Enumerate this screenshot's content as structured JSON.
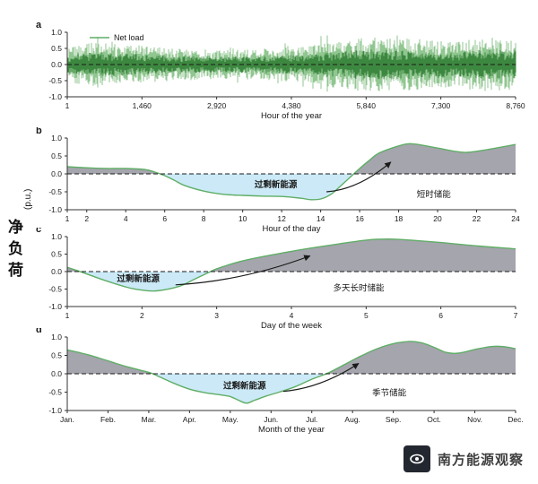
{
  "figure": {
    "ylabel_cn": "净负荷",
    "ylabel_unit": "(p.u.)"
  },
  "watermark": {
    "text": "南方能源观察"
  },
  "colors": {
    "curve": "#5fae66",
    "noise_light": "#74b874",
    "noise_dark": "#2f7d33",
    "fill_positive": "#a5a5ad",
    "fill_negative": "#cbe9f6",
    "zero_line": "#1a1a1a",
    "axis": "#333333",
    "red_label": "#d93025",
    "text": "#1a1a1a"
  },
  "chart_data": [
    {
      "id": "a",
      "panel_label": "a",
      "type": "line",
      "legend": "Net load",
      "xlabel": "Hour of the year",
      "xlim": [
        1,
        8760
      ],
      "xticks": [
        1,
        1460,
        2920,
        4380,
        5840,
        7300,
        8760
      ],
      "xtick_labels": [
        "1",
        "1,460",
        "2,920",
        "4,380",
        "5,840",
        "7,300",
        "8,760"
      ],
      "ylim": [
        -1,
        1
      ],
      "yticks": [
        1.0,
        0.5,
        0.0,
        -0.5,
        -1.0
      ],
      "ytick_labels": [
        "1.0",
        "0.5",
        "0.0",
        "-0.5",
        "-1.0"
      ],
      "noise_envelope": {
        "x": [
          0,
          0.06,
          0.15,
          0.25,
          0.35,
          0.45,
          0.52,
          0.6,
          0.68,
          0.78,
          0.86,
          0.93,
          1
        ],
        "amp": [
          0.55,
          0.68,
          0.6,
          0.5,
          0.45,
          0.5,
          0.55,
          0.75,
          0.85,
          0.8,
          0.7,
          0.85,
          0.8
        ]
      },
      "annotations": []
    },
    {
      "id": "b",
      "panel_label": "b",
      "type": "area",
      "xlabel": "Hour of the day",
      "xlim": [
        1,
        24
      ],
      "xticks": [
        1,
        2,
        4,
        6,
        8,
        10,
        12,
        14,
        16,
        18,
        20,
        22,
        24
      ],
      "xtick_labels": [
        "1",
        "2",
        "4",
        "6",
        "8",
        "10",
        "12",
        "14",
        "16",
        "18",
        "20",
        "22",
        "24"
      ],
      "ylim": [
        -1,
        1
      ],
      "yticks": [
        1.0,
        0.5,
        0.0,
        -0.5,
        -1.0
      ],
      "ytick_labels": [
        "1.0",
        "0.5",
        "0.0",
        "-0.5",
        "-1.0"
      ],
      "series": [
        [
          1,
          0.2
        ],
        [
          2,
          0.17
        ],
        [
          3,
          0.15
        ],
        [
          4,
          0.15
        ],
        [
          5,
          0.12
        ],
        [
          5.5,
          0.05
        ],
        [
          6,
          -0.05
        ],
        [
          6.5,
          -0.18
        ],
        [
          7,
          -0.32
        ],
        [
          8,
          -0.48
        ],
        [
          9,
          -0.57
        ],
        [
          10,
          -0.6
        ],
        [
          11,
          -0.62
        ],
        [
          12,
          -0.63
        ],
        [
          13,
          -0.68
        ],
        [
          13.5,
          -0.72
        ],
        [
          14,
          -0.7
        ],
        [
          14.5,
          -0.58
        ],
        [
          15,
          -0.35
        ],
        [
          15.5,
          -0.1
        ],
        [
          16,
          0.15
        ],
        [
          16.5,
          0.38
        ],
        [
          17,
          0.58
        ],
        [
          18,
          0.78
        ],
        [
          18.5,
          0.84
        ],
        [
          19,
          0.82
        ],
        [
          20,
          0.72
        ],
        [
          21,
          0.62
        ],
        [
          21.5,
          0.6
        ],
        [
          22,
          0.63
        ],
        [
          23,
          0.72
        ],
        [
          24,
          0.82
        ]
      ],
      "annotations": [
        {
          "kind": "label",
          "text": "过剩新能源",
          "x": 11.7,
          "y": -0.3,
          "color": "red"
        },
        {
          "kind": "label",
          "text": "短时储能",
          "x": 19.8,
          "y": -0.57,
          "color": "black"
        },
        {
          "kind": "arrow",
          "from": [
            14.3,
            -0.5
          ],
          "to": [
            17.6,
            0.33
          ],
          "sag": 14
        }
      ]
    },
    {
      "id": "c",
      "panel_label": "c",
      "type": "area",
      "xlabel": "Day of the week",
      "xlim": [
        1,
        7
      ],
      "xticks": [
        1,
        2,
        3,
        4,
        5,
        6,
        7
      ],
      "xtick_labels": [
        "1",
        "2",
        "3",
        "4",
        "5",
        "6",
        "7"
      ],
      "ylim": [
        -1,
        1
      ],
      "yticks": [
        1.0,
        0.5,
        0.0,
        -0.5,
        -1.0
      ],
      "ytick_labels": [
        "1.0",
        "0.5",
        "0.0",
        "-0.5",
        "-1.0"
      ],
      "series": [
        [
          1,
          0.12
        ],
        [
          1.2,
          -0.02
        ],
        [
          1.5,
          -0.25
        ],
        [
          1.8,
          -0.45
        ],
        [
          2,
          -0.53
        ],
        [
          2.2,
          -0.55
        ],
        [
          2.5,
          -0.42
        ],
        [
          2.7,
          -0.22
        ],
        [
          2.9,
          -0.02
        ],
        [
          3,
          0.08
        ],
        [
          3.3,
          0.28
        ],
        [
          3.6,
          0.42
        ],
        [
          4,
          0.58
        ],
        [
          4.5,
          0.75
        ],
        [
          5,
          0.9
        ],
        [
          5.3,
          0.93
        ],
        [
          5.6,
          0.9
        ],
        [
          6,
          0.83
        ],
        [
          6.5,
          0.73
        ],
        [
          7,
          0.65
        ]
      ],
      "annotations": [
        {
          "kind": "label",
          "text": "过剩新能源",
          "x": 1.95,
          "y": -0.2,
          "color": "red"
        },
        {
          "kind": "label",
          "text": "多天长时储能",
          "x": 4.9,
          "y": -0.47,
          "color": "black"
        },
        {
          "kind": "arrow",
          "from": [
            2.45,
            -0.38
          ],
          "to": [
            4.25,
            0.45
          ],
          "sag": 12
        }
      ]
    },
    {
      "id": "d",
      "panel_label": "d",
      "type": "area",
      "xlabel": "Month of the year",
      "xlim": [
        1,
        12
      ],
      "xticks": [
        1,
        2,
        3,
        4,
        5,
        6,
        7,
        8,
        9,
        10,
        11,
        12
      ],
      "xtick_labels": [
        "Jan.",
        "Feb.",
        "Mar.",
        "Apr.",
        "May.",
        "Jun.",
        "Jul.",
        "Aug.",
        "Sep.",
        "Oct.",
        "Nov.",
        "Dec."
      ],
      "ylim": [
        -1,
        1
      ],
      "yticks": [
        1.0,
        0.5,
        0.0,
        -0.5,
        -1.0
      ],
      "ytick_labels": [
        "1.0",
        "0.5",
        "0.0",
        "-0.5",
        "-1.0"
      ],
      "series": [
        [
          1,
          0.65
        ],
        [
          1.5,
          0.52
        ],
        [
          2,
          0.35
        ],
        [
          2.5,
          0.18
        ],
        [
          3,
          0.04
        ],
        [
          3.2,
          -0.05
        ],
        [
          3.6,
          -0.25
        ],
        [
          4,
          -0.42
        ],
        [
          4.4,
          -0.52
        ],
        [
          4.8,
          -0.58
        ],
        [
          5,
          -0.62
        ],
        [
          5.2,
          -0.72
        ],
        [
          5.4,
          -0.8
        ],
        [
          5.6,
          -0.72
        ],
        [
          5.9,
          -0.6
        ],
        [
          6.2,
          -0.5
        ],
        [
          6.6,
          -0.35
        ],
        [
          7,
          -0.15
        ],
        [
          7.4,
          0.02
        ],
        [
          7.8,
          0.25
        ],
        [
          8.2,
          0.48
        ],
        [
          8.6,
          0.68
        ],
        [
          9,
          0.82
        ],
        [
          9.4,
          0.88
        ],
        [
          9.7,
          0.84
        ],
        [
          10,
          0.72
        ],
        [
          10.3,
          0.58
        ],
        [
          10.6,
          0.56
        ],
        [
          11,
          0.66
        ],
        [
          11.4,
          0.74
        ],
        [
          11.7,
          0.74
        ],
        [
          12,
          0.68
        ]
      ],
      "annotations": [
        {
          "kind": "label",
          "text": "过剩新能源",
          "x": 5.35,
          "y": -0.33,
          "color": "red"
        },
        {
          "kind": "label",
          "text": "季节储能",
          "x": 8.9,
          "y": -0.52,
          "color": "black"
        },
        {
          "kind": "arrow",
          "from": [
            6.3,
            -0.48
          ],
          "to": [
            8.15,
            0.28
          ],
          "sag": 12
        }
      ]
    }
  ]
}
